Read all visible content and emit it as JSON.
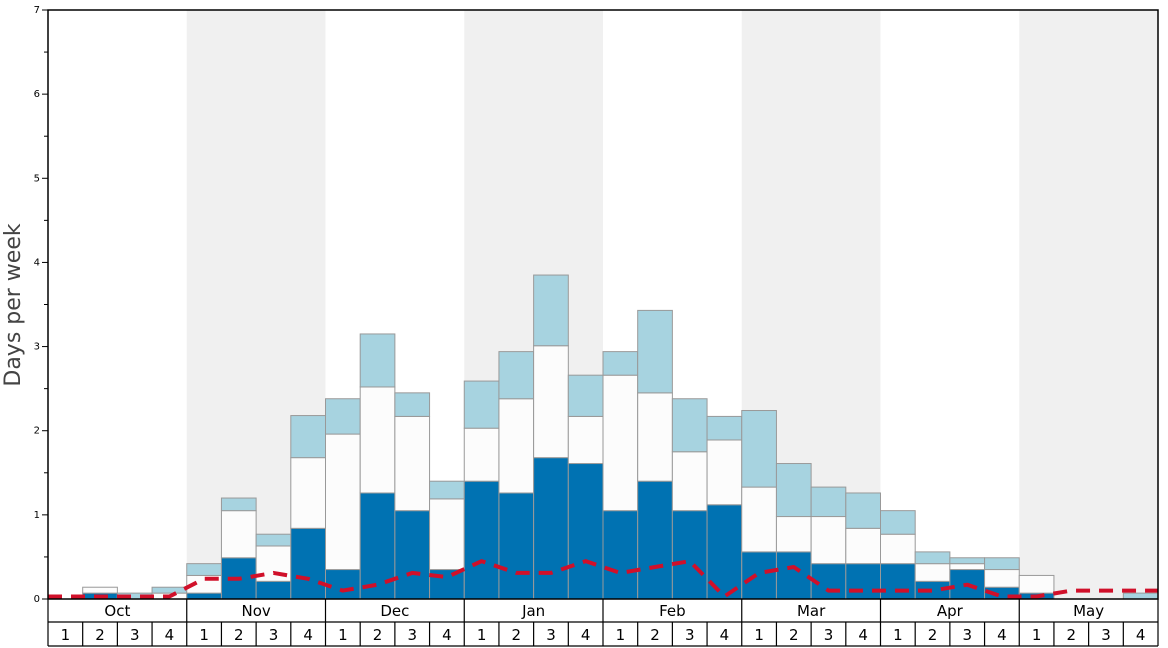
{
  "chart_data": {
    "type": "bar",
    "ylabel": "Days per week",
    "ylim": [
      0,
      7
    ],
    "yticks": [
      "0",
      "1",
      "2",
      "3",
      "4",
      "5",
      "6",
      "7"
    ],
    "months": [
      "Oct",
      "Nov",
      "Dec",
      "Jan",
      "Feb",
      "Mar",
      "Apr",
      "May"
    ],
    "weeks": [
      "1",
      "2",
      "3",
      "4"
    ],
    "bar_style": "stacked",
    "colors": {
      "dark": "#0072b2",
      "white": "#fcfcfc",
      "light": "#a7d3e0",
      "bar_edge": "#999999",
      "line": "#d0102a",
      "band_shade": "#f0f0f0"
    },
    "series": [
      {
        "values": [
          0,
          0.07,
          0,
          0,
          0.07,
          0.49,
          0.21,
          0.84,
          0.35,
          1.26,
          1.05,
          0.35,
          1.4,
          1.26,
          1.68,
          1.61,
          1.05,
          1.4,
          1.05,
          1.12,
          0.56,
          0.56,
          0.42,
          0.42,
          0.42,
          0.21,
          0.35,
          0.14,
          0.07,
          0,
          0,
          0
        ]
      },
      {
        "values": [
          0,
          0.07,
          0,
          0.07,
          0.21,
          0.56,
          0.42,
          0.84,
          1.61,
          1.26,
          1.12,
          0.84,
          0.63,
          1.12,
          1.33,
          0.56,
          1.61,
          1.05,
          0.7,
          0.77,
          0.77,
          0.42,
          0.56,
          0.42,
          0.35,
          0.21,
          0.07,
          0.21,
          0.21,
          0,
          0,
          0
        ]
      },
      {
        "values": [
          0,
          0,
          0.07,
          0.07,
          0.14,
          0.15,
          0.14,
          0.5,
          0.42,
          0.63,
          0.28,
          0.21,
          0.56,
          0.56,
          0.84,
          0.49,
          0.28,
          0.98,
          0.63,
          0.28,
          0.91,
          0.63,
          0.35,
          0.42,
          0.28,
          0.14,
          0.07,
          0.14,
          0,
          0,
          0,
          0.07
        ]
      },
      {
        "type": "line",
        "style": "dashed",
        "values": [
          0.03,
          0.03,
          0.03,
          0.03,
          0.24,
          0.24,
          0.31,
          0.24,
          0.1,
          0.17,
          0.31,
          0.26,
          0.45,
          0.31,
          0.31,
          0.45,
          0.31,
          0.38,
          0.45,
          0.03,
          0.31,
          0.38,
          0.1,
          0.1,
          0.1,
          0.1,
          0.17,
          0.03,
          0.03,
          0.1,
          0.1,
          0.1
        ]
      }
    ]
  }
}
